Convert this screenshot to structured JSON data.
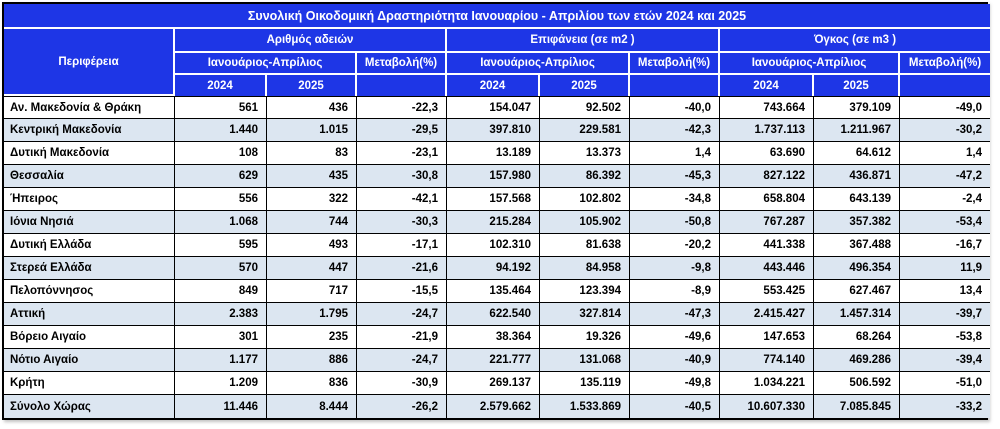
{
  "title": "Συνολική Οικοδομική Δραστηριότητα Ιανουαρίου - Απριλίου των ετών 2024 και 2025",
  "header": {
    "region": "Περιφέρεια",
    "groups": [
      {
        "label": "Αριθμός αδειών"
      },
      {
        "label": "Επιφάνεια (σε m2 )"
      },
      {
        "label": "Όγκος (σε m3 )"
      }
    ],
    "period": "Ιανουάριος-Απρίλιος",
    "change": "Μεταβολή(%)",
    "years": [
      "2024",
      "2025"
    ]
  },
  "rows": [
    {
      "region": "Αν. Μακεδονία & Θράκη",
      "values": [
        "561",
        "436",
        "-22,3",
        "154.047",
        "92.502",
        "-40,0",
        "743.664",
        "379.109",
        "-49,0"
      ]
    },
    {
      "region": "Κεντρική Μακεδονία",
      "values": [
        "1.440",
        "1.015",
        "-29,5",
        "397.810",
        "229.581",
        "-42,3",
        "1.737.113",
        "1.211.967",
        "-30,2"
      ]
    },
    {
      "region": "Δυτική Μακεδονία",
      "values": [
        "108",
        "83",
        "-23,1",
        "13.189",
        "13.373",
        "1,4",
        "63.690",
        "64.612",
        "1,4"
      ]
    },
    {
      "region": "Θεσσαλία",
      "values": [
        "629",
        "435",
        "-30,8",
        "157.980",
        "86.392",
        "-45,3",
        "827.122",
        "436.871",
        "-47,2"
      ]
    },
    {
      "region": "Ήπειρος",
      "values": [
        "556",
        "322",
        "-42,1",
        "157.568",
        "102.802",
        "-34,8",
        "658.804",
        "643.139",
        "-2,4"
      ]
    },
    {
      "region": "Ιόνια Νησιά",
      "values": [
        "1.068",
        "744",
        "-30,3",
        "215.284",
        "105.902",
        "-50,8",
        "767.287",
        "357.382",
        "-53,4"
      ]
    },
    {
      "region": "Δυτική Ελλάδα",
      "values": [
        "595",
        "493",
        "-17,1",
        "102.310",
        "81.638",
        "-20,2",
        "441.338",
        "367.488",
        "-16,7"
      ]
    },
    {
      "region": "Στερεά Ελλάδα",
      "values": [
        "570",
        "447",
        "-21,6",
        "94.192",
        "84.958",
        "-9,8",
        "443.446",
        "496.354",
        "11,9"
      ]
    },
    {
      "region": "Πελοπόννησος",
      "values": [
        "849",
        "717",
        "-15,5",
        "135.464",
        "123.394",
        "-8,9",
        "553.425",
        "627.467",
        "13,4"
      ]
    },
    {
      "region": "Αττική",
      "values": [
        "2.383",
        "1.795",
        "-24,7",
        "622.540",
        "327.814",
        "-47,3",
        "2.415.427",
        "1.457.314",
        "-39,7"
      ]
    },
    {
      "region": "Βόρειο Αιγαίο",
      "values": [
        "301",
        "235",
        "-21,9",
        "38.364",
        "19.326",
        "-49,6",
        "147.653",
        "68.264",
        "-53,8"
      ]
    },
    {
      "region": "Νότιο Αιγαίο",
      "values": [
        "1.177",
        "886",
        "-24,7",
        "221.777",
        "131.068",
        "-40,9",
        "774.140",
        "469.286",
        "-39,4"
      ]
    },
    {
      "region": "Κρήτη",
      "values": [
        "1.209",
        "836",
        "-30,9",
        "269.137",
        "135.119",
        "-49,8",
        "1.034.221",
        "506.592",
        "-51,0"
      ]
    },
    {
      "region": "Σύνολο Χώρας",
      "values": [
        "11.446",
        "8.444",
        "-26,2",
        "2.579.662",
        "1.533.869",
        "-40,5",
        "10.607.330",
        "7.085.845",
        "-33,2"
      ]
    }
  ],
  "colors": {
    "header_blue": "#1e36e6",
    "row_alt_blue": "#dce6f1",
    "border_black": "#000000",
    "header_text": "#ffffff"
  }
}
